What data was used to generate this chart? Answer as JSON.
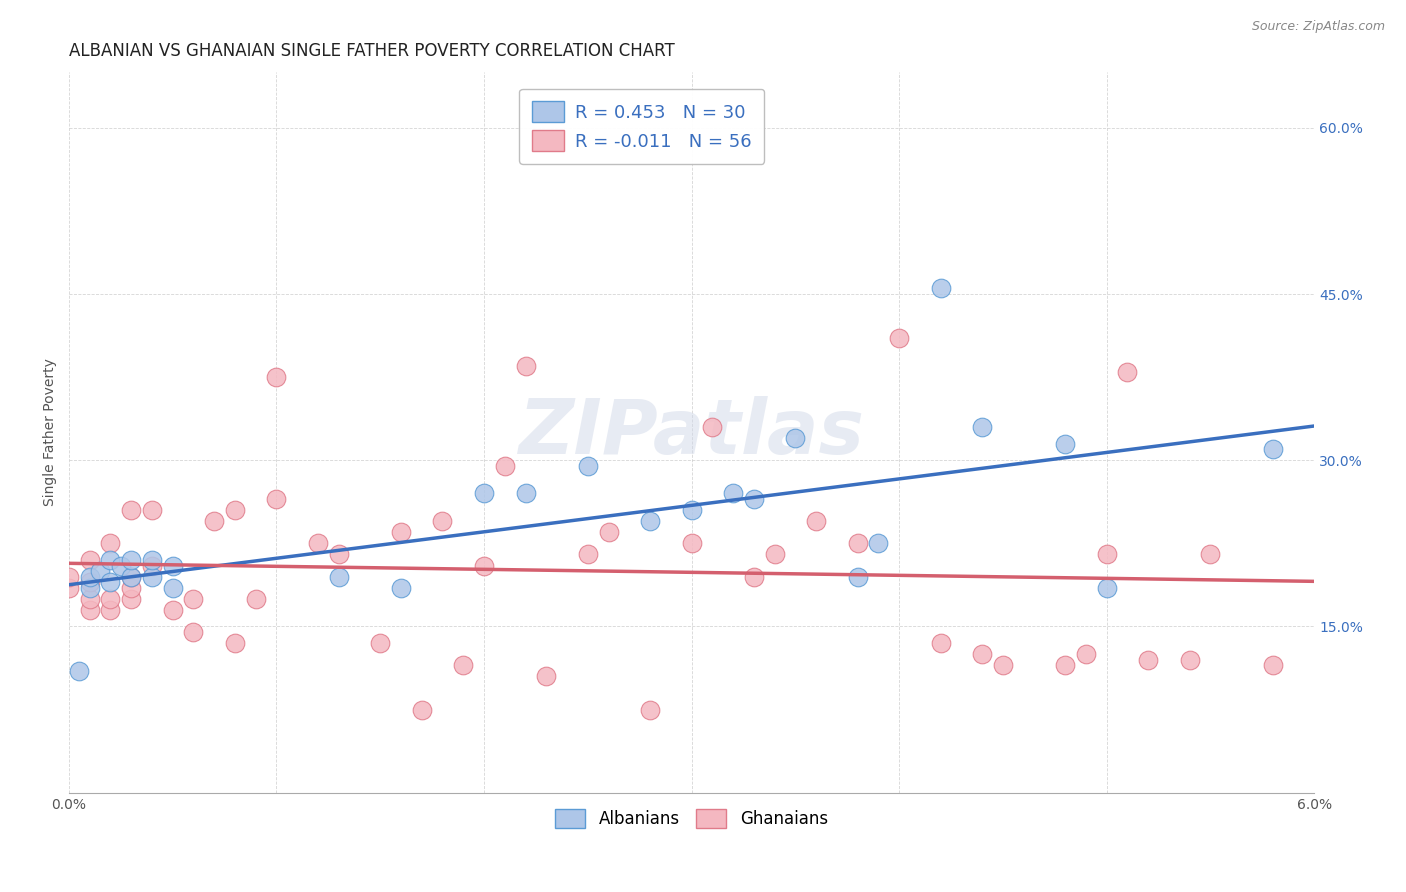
{
  "title": "ALBANIAN VS GHANAIAN SINGLE FATHER POVERTY CORRELATION CHART",
  "source": "Source: ZipAtlas.com",
  "ylabel": "Single Father Poverty",
  "xlim": [
    0.0,
    0.06
  ],
  "ylim": [
    0.0,
    0.65
  ],
  "x_ticks": [
    0.0,
    0.01,
    0.02,
    0.03,
    0.04,
    0.05,
    0.06
  ],
  "y_ticks": [
    0.0,
    0.15,
    0.3,
    0.45,
    0.6
  ],
  "y_tick_labels_right": [
    "",
    "15.0%",
    "30.0%",
    "45.0%",
    "60.0%"
  ],
  "albanian_R": 0.453,
  "albanian_N": 30,
  "ghanaian_R": -0.011,
  "ghanaian_N": 56,
  "albanian_color": "#aec6e8",
  "albanian_edge_color": "#5b9bd5",
  "ghanaian_color": "#f4b8c1",
  "ghanaian_edge_color": "#e07b8a",
  "albanian_line_color": "#3a6fbf",
  "ghanaian_line_color": "#d45f6e",
  "watermark": "ZIPatlas",
  "albanian_x": [
    0.0005,
    0.001,
    0.001,
    0.0015,
    0.002,
    0.002,
    0.0025,
    0.003,
    0.003,
    0.004,
    0.004,
    0.005,
    0.005,
    0.013,
    0.016,
    0.02,
    0.022,
    0.025,
    0.028,
    0.03,
    0.032,
    0.033,
    0.035,
    0.038,
    0.039,
    0.042,
    0.044,
    0.048,
    0.05,
    0.058
  ],
  "albanian_y": [
    0.11,
    0.185,
    0.195,
    0.2,
    0.19,
    0.21,
    0.205,
    0.195,
    0.21,
    0.195,
    0.21,
    0.185,
    0.205,
    0.195,
    0.185,
    0.27,
    0.27,
    0.295,
    0.245,
    0.255,
    0.27,
    0.265,
    0.32,
    0.195,
    0.225,
    0.455,
    0.33,
    0.315,
    0.185,
    0.31
  ],
  "ghanaian_x": [
    0.0,
    0.0,
    0.001,
    0.001,
    0.001,
    0.001,
    0.002,
    0.002,
    0.002,
    0.003,
    0.003,
    0.003,
    0.003,
    0.004,
    0.004,
    0.005,
    0.006,
    0.006,
    0.007,
    0.008,
    0.008,
    0.009,
    0.01,
    0.01,
    0.012,
    0.013,
    0.015,
    0.016,
    0.017,
    0.018,
    0.019,
    0.02,
    0.021,
    0.022,
    0.023,
    0.025,
    0.026,
    0.028,
    0.03,
    0.031,
    0.033,
    0.034,
    0.036,
    0.038,
    0.04,
    0.042,
    0.044,
    0.045,
    0.048,
    0.049,
    0.05,
    0.051,
    0.052,
    0.054,
    0.055,
    0.058
  ],
  "ghanaian_y": [
    0.185,
    0.195,
    0.165,
    0.175,
    0.19,
    0.21,
    0.165,
    0.175,
    0.225,
    0.175,
    0.185,
    0.195,
    0.255,
    0.205,
    0.255,
    0.165,
    0.145,
    0.175,
    0.245,
    0.255,
    0.135,
    0.175,
    0.265,
    0.375,
    0.225,
    0.215,
    0.135,
    0.235,
    0.075,
    0.245,
    0.115,
    0.205,
    0.295,
    0.385,
    0.105,
    0.215,
    0.235,
    0.075,
    0.225,
    0.33,
    0.195,
    0.215,
    0.245,
    0.225,
    0.41,
    0.135,
    0.125,
    0.115,
    0.115,
    0.125,
    0.215,
    0.38,
    0.12,
    0.12,
    0.215,
    0.115
  ],
  "legend_albanian_label": "Albanians",
  "legend_ghanaian_label": "Ghanaians",
  "background_color": "#ffffff",
  "grid_color": "#cccccc",
  "title_fontsize": 12,
  "axis_label_fontsize": 10,
  "tick_fontsize": 10,
  "marker_size": 180
}
